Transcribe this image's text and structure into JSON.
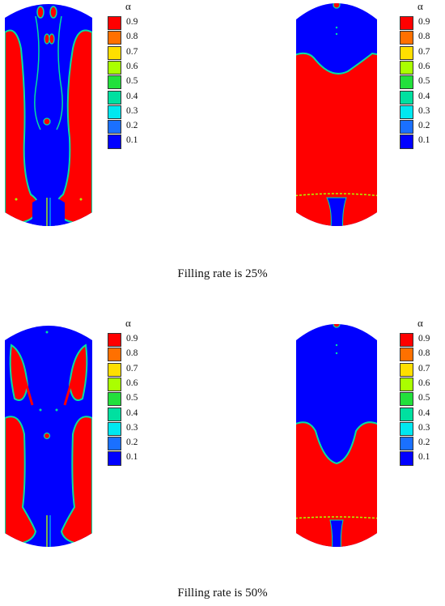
{
  "legend": {
    "title": "α",
    "labels": [
      "0.9",
      "0.8",
      "0.7",
      "0.6",
      "0.5",
      "0.4",
      "0.3",
      "0.2",
      "0.1"
    ],
    "colors": [
      "#ff0000",
      "#ff7000",
      "#ffdf00",
      "#aaff00",
      "#22e03c",
      "#00e0a0",
      "#00e8f0",
      "#1a70ff",
      "#0000ff"
    ]
  },
  "colors": {
    "liquid": "#ff0000",
    "gas": "#0000ff",
    "interface_outer": "#00e0a0",
    "interface_inner": "#aaff00"
  },
  "captions": {
    "top": "Filling rate is 25%",
    "bottom": "Filling rate is 50%"
  }
}
